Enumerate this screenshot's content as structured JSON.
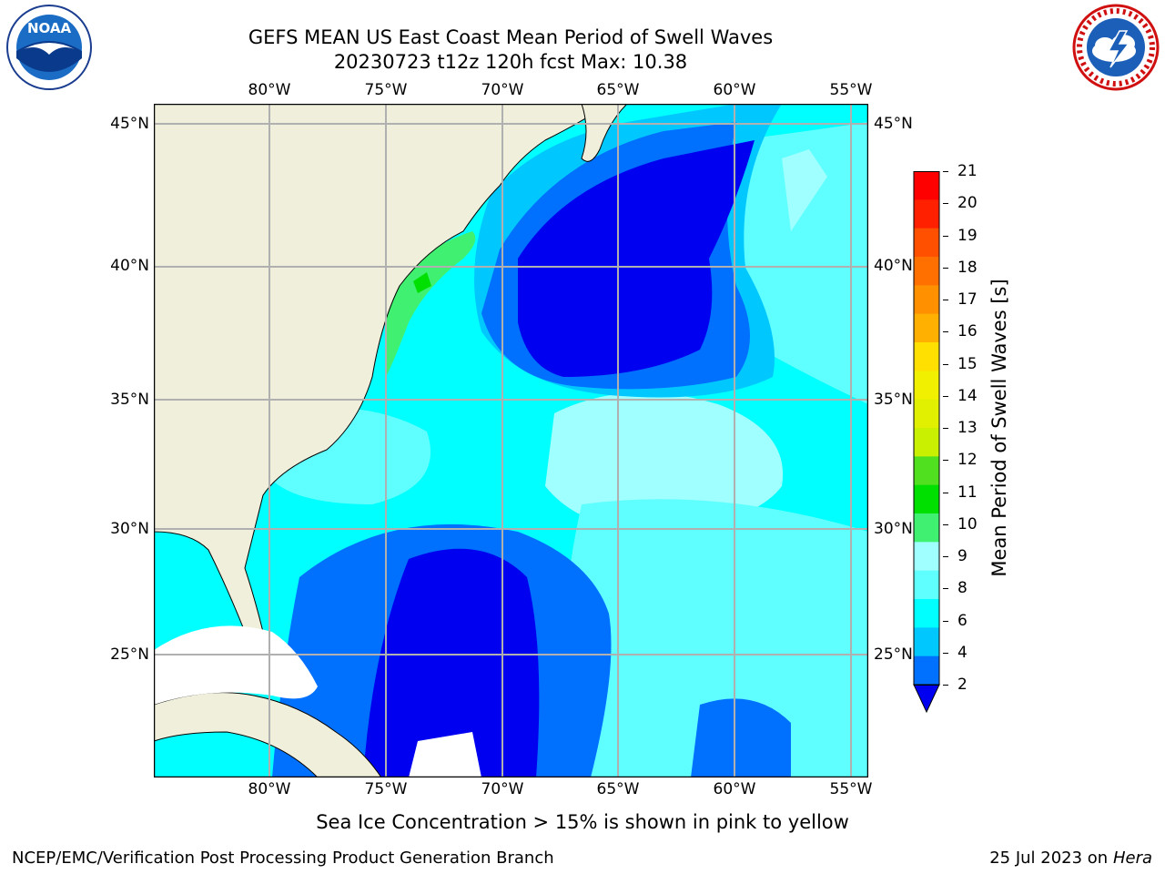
{
  "header": {
    "title_line1": "GEFS MEAN US East Coast Mean Period of Swell Waves",
    "title_line2": "20230723 t12z 120h fcst   Max: 10.38"
  },
  "logos": {
    "left_name": "noaa-logo",
    "left_text": "NOAA",
    "right_name": "nws-logo"
  },
  "map": {
    "lon_labels": [
      "80°W",
      "75°W",
      "70°W",
      "65°W",
      "60°W",
      "55°W"
    ],
    "lat_labels": [
      "45°N",
      "40°N",
      "35°N",
      "30°N",
      "25°N"
    ],
    "land_color": "#efefdc",
    "ocean_missing_color": "#ffffff"
  },
  "colorbar": {
    "label": "Mean Period of Swell Waves [s]",
    "ticks": [
      "21",
      "20",
      "19",
      "18",
      "17",
      "16",
      "15",
      "14",
      "13",
      "12",
      "11",
      "10",
      "9",
      "8",
      "6",
      "4",
      "2"
    ],
    "colors": [
      "#ff0000",
      "#ff2000",
      "#ff5000",
      "#ff7000",
      "#ff9000",
      "#ffb000",
      "#ffe000",
      "#f0f000",
      "#e0f000",
      "#c8f000",
      "#50e020",
      "#00e000",
      "#40f070",
      "#a0ffff",
      "#60ffff",
      "#00ffff",
      "#00c8ff",
      "#0070ff",
      "#0000f0"
    ]
  },
  "footer": {
    "sea_ice_note": "Sea Ice Concentration > 15% is shown in pink to yellow",
    "left": "NCEP/EMC/Verification Post Processing Product Generation Branch",
    "right_date": "25 Jul 2023 on ",
    "right_host": "Hera"
  }
}
